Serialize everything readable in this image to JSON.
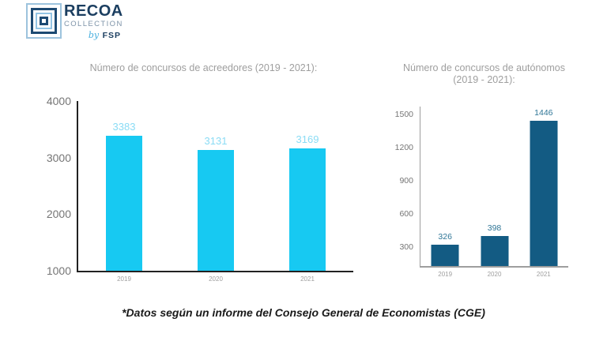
{
  "page": {
    "background": "#ffffff"
  },
  "logo": {
    "title": "RECOA",
    "subtitle": "COLLECTION",
    "by_script": "by",
    "brand": "FSP",
    "colors": {
      "navy": "#1d4a72",
      "light_blue": "#9dc3dd",
      "title_navy": "#1b3e60",
      "subtitle_gray_blue": "#7d93a8",
      "script_blue": "#45aede"
    }
  },
  "chart_data": [
    {
      "type": "bar",
      "title": "Número de concursos de acreedores (2019 - 2021):",
      "categories": [
        "2019",
        "2020",
        "2021"
      ],
      "values": [
        3383,
        3131,
        3169
      ],
      "ylim": [
        1000,
        4000
      ],
      "yticks": [
        4000,
        3000,
        2000,
        1000
      ],
      "xlabel": "",
      "ylabel": "",
      "grid": false,
      "legend": "none",
      "bar_color": "#17c9f2",
      "value_label_color": "#8adcf5",
      "axis_color": "#212121",
      "tick_label_color": "#757575"
    },
    {
      "type": "bar",
      "title": "Número de concursos de autónomos (2019 - 2021):",
      "categories": [
        "2019",
        "2020",
        "2021"
      ],
      "values": [
        326,
        398,
        1446
      ],
      "ylim": [
        130,
        1573
      ],
      "yticks": [
        1500,
        1200,
        900,
        600,
        300
      ],
      "xlabel": "",
      "ylabel": "",
      "grid": false,
      "legend": "none",
      "bar_color": "#135b83",
      "value_label_color": "#2e7596",
      "axis_color": "#9e9e9e",
      "tick_label_color": "#757575"
    }
  ],
  "footer": {
    "note": "*Datos según un informe del Consejo General de Economistas (CGE)"
  }
}
